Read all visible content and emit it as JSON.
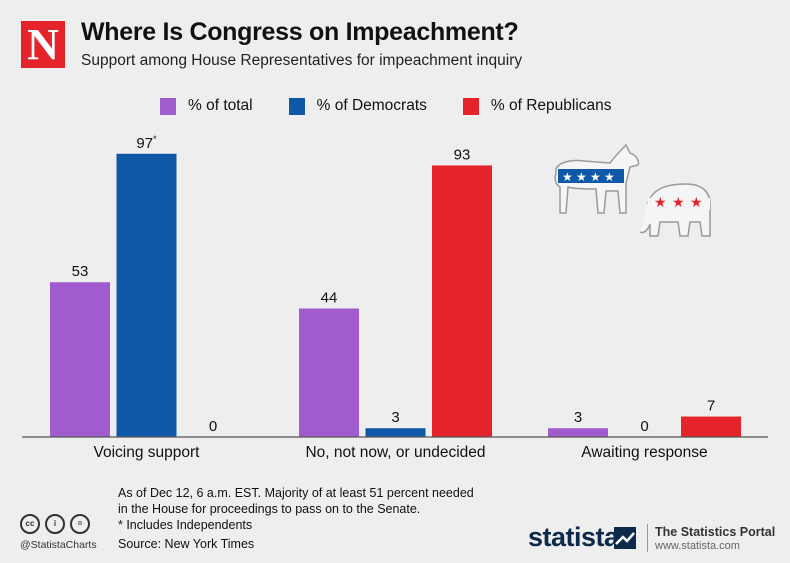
{
  "header": {
    "logo_letter": "N",
    "title": "Where Is Congress on Impeachment?",
    "subtitle": "Support among House Representatives for impeachment inquiry"
  },
  "colors": {
    "total": "#a05bcf",
    "democrats": "#0f58a8",
    "republicans": "#e4232b",
    "baseline": "#555555",
    "text": "#111111"
  },
  "chart_data": {
    "type": "bar",
    "title": "Where Is Congress on Impeachment?",
    "subtitle": "Support among House Representatives for impeachment inquiry",
    "categories": [
      "Voicing support",
      "No, not now, or undecided",
      "Awaiting response"
    ],
    "series": [
      {
        "name": "% of total",
        "values": [
          53,
          44,
          3
        ],
        "labels": [
          "53",
          "44",
          "3"
        ]
      },
      {
        "name": "% of Democrats",
        "values": [
          97,
          3,
          0
        ],
        "labels": [
          "97",
          "3",
          "0"
        ]
      },
      {
        "name": "% of Republicans",
        "values": [
          0,
          93,
          7
        ],
        "labels": [
          "0",
          "93",
          "7"
        ]
      }
    ],
    "label_superscripts": {
      "series": 1,
      "category": 0,
      "text": "*"
    },
    "xlabel": "",
    "ylabel": "",
    "ylim": [
      0,
      100
    ],
    "grid": false,
    "legend_position": "top"
  },
  "footnote": {
    "lines": [
      "As of Dec 12, 6 a.m. EST. Majority of at least 51 percent needed",
      "in the House for proceedings to pass on to the Senate.",
      "* Includes Independents"
    ],
    "source": "Source: New York Times"
  },
  "footer": {
    "cc_icons": [
      "cc",
      "i",
      "="
    ],
    "handle": "@StatistaCharts",
    "brand": "statista",
    "portal_title": "The Statistics Portal",
    "portal_url": "www.statista.com"
  }
}
